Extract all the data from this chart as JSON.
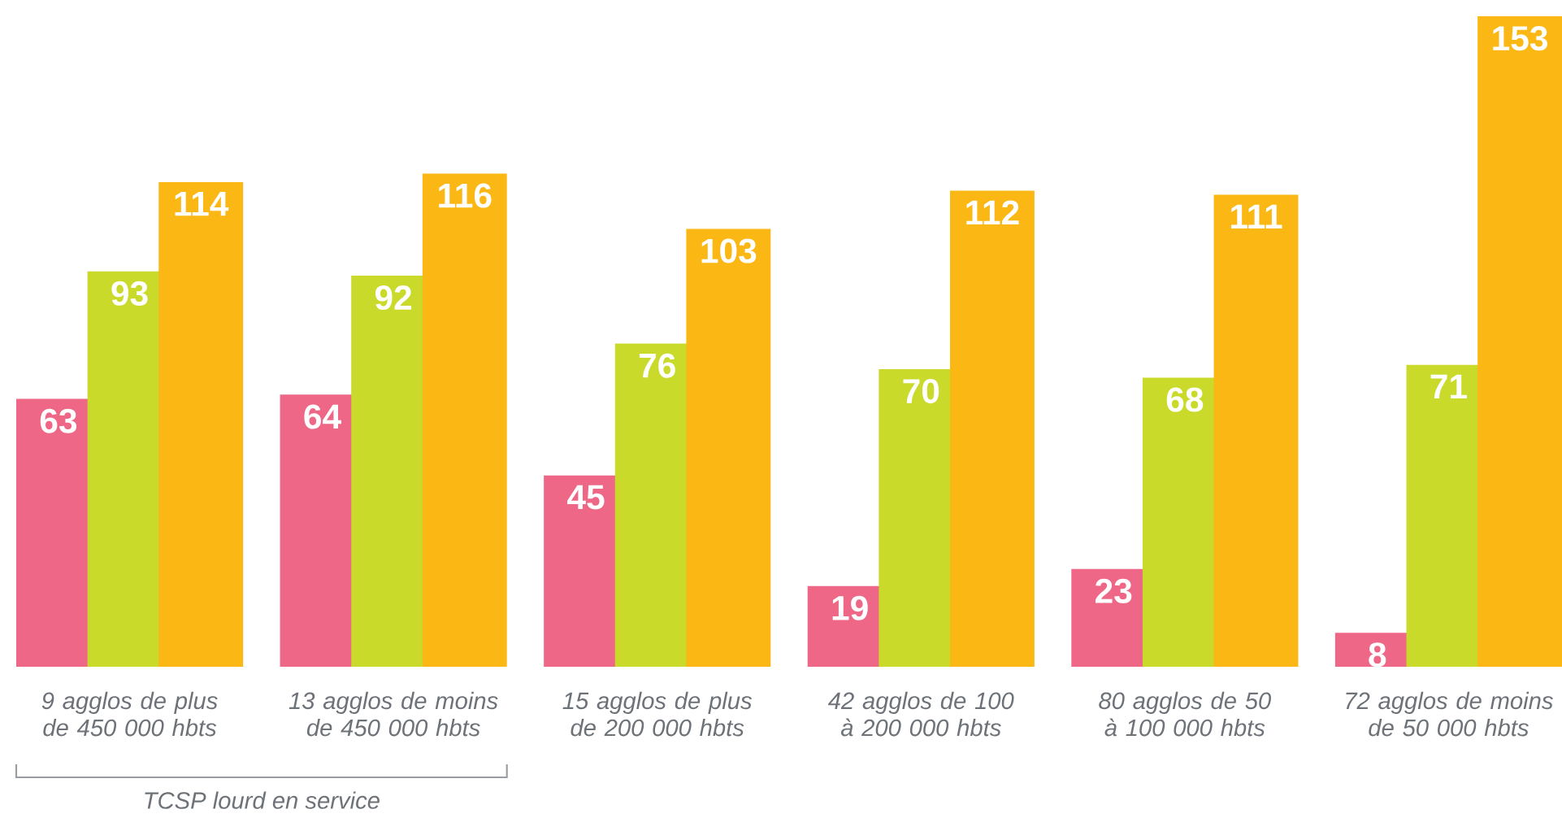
{
  "chart_data": {
    "type": "bar",
    "categories": [
      "9 agglos de plus de 450 000 hbts",
      "13 agglos de moins de 450 000 hbts",
      "15 agglos de plus de 200 000 hbts",
      "42 agglos de 100 à 200 000 hbts",
      "80 agglos de 50 à 100 000 hbts",
      "72 agglos de moins de 50 000 hbts"
    ],
    "series": [
      {
        "color": "#ef6787",
        "values": [
          63,
          64,
          45,
          19,
          23,
          8
        ]
      },
      {
        "color": "#c9da2b",
        "values": [
          93,
          92,
          76,
          70,
          68,
          71
        ]
      },
      {
        "color": "#fbb714",
        "values": [
          114,
          116,
          103,
          112,
          111,
          153
        ]
      }
    ],
    "data_labels": true,
    "annotations": [
      "TCSP lourd en service"
    ]
  }
}
